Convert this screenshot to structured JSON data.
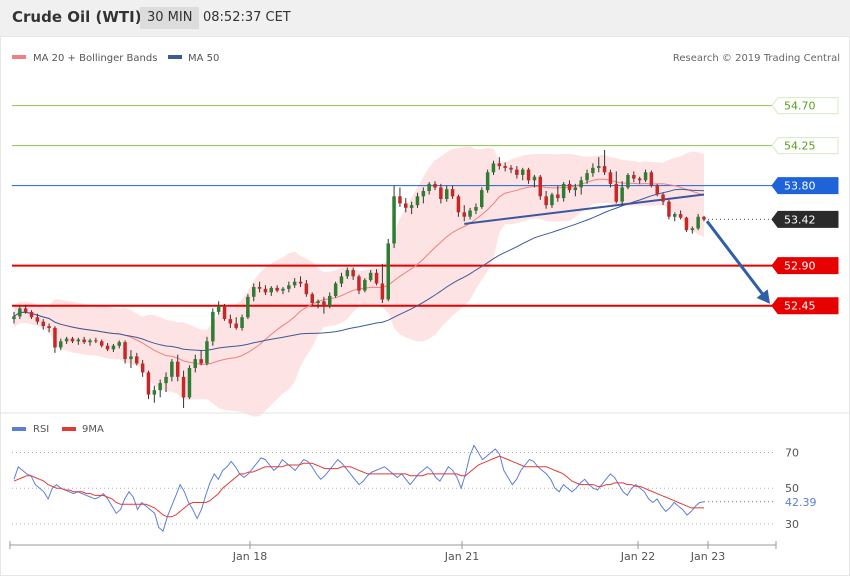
{
  "header": {
    "instrument": "Crude Oil (WTI)",
    "timeframe": "30 MIN",
    "time": "08:52:37 CET"
  },
  "legend": {
    "ma20_label": "MA 20 + Bollinger Bands",
    "ma50_label": "MA 50",
    "credit": "Research © 2019 Trading Central"
  },
  "rsi_legend": {
    "rsi_label": "RSI",
    "ma_label": "9MA"
  },
  "colors": {
    "bull_candle": "#2e7d32",
    "bear_candle": "#c62828",
    "bollinger_fill": "#fddede",
    "ma20": "#f08080",
    "ma50": "#3a5b9b",
    "rsi": "#5b7fd9",
    "rsi_ma": "#e53935",
    "support": "#e60000",
    "pivot": "#1e63d8",
    "resistance": "#8bc34a",
    "arrow": "#2f5fa6",
    "current_price": "#2b2b2b"
  },
  "chart_data": [
    {
      "type": "candlestick",
      "title": "Crude Oil (WTI)",
      "interval": "30 MIN",
      "x_ticks": [
        "Jan 18",
        "Jan 21",
        "Jan 22",
        "Jan 23"
      ],
      "ylim": [
        51.3,
        55.1
      ],
      "price_levels": [
        {
          "label": "54.70",
          "value": 54.7,
          "kind": "resistance"
        },
        {
          "label": "54.25",
          "value": 54.25,
          "kind": "resistance"
        },
        {
          "label": "53.80",
          "value": 53.8,
          "kind": "pivot"
        },
        {
          "label": "53.42",
          "value": 53.42,
          "kind": "current"
        },
        {
          "label": "52.90",
          "value": 52.9,
          "kind": "support"
        },
        {
          "label": "52.45",
          "value": 52.45,
          "kind": "support"
        }
      ],
      "series": [
        {
          "name": "MA 20 + Bollinger Bands"
        },
        {
          "name": "MA 50"
        }
      ],
      "candles": [
        [
          52.3,
          52.38,
          52.25,
          52.33
        ],
        [
          52.33,
          52.45,
          52.3,
          52.42
        ],
        [
          52.42,
          52.46,
          52.36,
          52.38
        ],
        [
          52.38,
          52.4,
          52.3,
          52.32
        ],
        [
          52.32,
          52.36,
          52.24,
          52.27
        ],
        [
          52.27,
          52.3,
          52.18,
          52.22
        ],
        [
          52.22,
          52.25,
          52.15,
          52.2
        ],
        [
          52.2,
          52.22,
          51.92,
          51.98
        ],
        [
          51.98,
          52.08,
          51.95,
          52.05
        ],
        [
          52.05,
          52.1,
          52.02,
          52.08
        ],
        [
          52.08,
          52.1,
          52.03,
          52.05
        ],
        [
          52.05,
          52.09,
          52.01,
          52.07
        ],
        [
          52.07,
          52.1,
          52.02,
          52.04
        ],
        [
          52.04,
          52.08,
          52.0,
          52.06
        ],
        [
          52.06,
          52.09,
          52.03,
          52.05
        ],
        [
          52.05,
          52.07,
          51.98,
          52.0
        ],
        [
          52.0,
          52.03,
          51.94,
          51.96
        ],
        [
          51.96,
          52.02,
          51.93,
          52.0
        ],
        [
          52.0,
          52.06,
          51.97,
          52.04
        ],
        [
          52.04,
          52.06,
          51.8,
          51.85
        ],
        [
          51.85,
          51.95,
          51.75,
          51.88
        ],
        [
          51.88,
          51.92,
          51.78,
          51.8
        ],
        [
          51.8,
          51.84,
          51.65,
          51.7
        ],
        [
          51.7,
          51.72,
          51.4,
          51.45
        ],
        [
          51.45,
          51.55,
          51.36,
          51.5
        ],
        [
          51.5,
          51.62,
          51.42,
          51.58
        ],
        [
          51.58,
          51.7,
          51.48,
          51.65
        ],
        [
          51.65,
          51.85,
          51.6,
          51.82
        ],
        [
          51.82,
          51.9,
          51.6,
          51.65
        ],
        [
          51.65,
          51.72,
          51.3,
          51.42
        ],
        [
          51.42,
          51.78,
          51.4,
          51.75
        ],
        [
          51.75,
          51.9,
          51.7,
          51.85
        ],
        [
          51.85,
          51.95,
          51.78,
          51.8
        ],
        [
          51.8,
          52.1,
          51.78,
          52.05
        ],
        [
          52.05,
          52.42,
          52.0,
          52.38
        ],
        [
          52.38,
          52.5,
          52.35,
          52.45
        ],
        [
          52.45,
          52.47,
          52.28,
          52.3
        ],
        [
          52.3,
          52.35,
          52.2,
          52.25
        ],
        [
          52.25,
          52.32,
          52.18,
          52.2
        ],
        [
          52.2,
          52.35,
          52.17,
          52.32
        ],
        [
          52.32,
          52.58,
          52.3,
          52.55
        ],
        [
          52.55,
          52.7,
          52.5,
          52.66
        ],
        [
          52.66,
          52.72,
          52.6,
          52.64
        ],
        [
          52.64,
          52.68,
          52.57,
          52.6
        ],
        [
          52.6,
          52.67,
          52.56,
          52.65
        ],
        [
          52.65,
          52.68,
          52.6,
          52.62
        ],
        [
          52.62,
          52.66,
          52.58,
          52.64
        ],
        [
          52.64,
          52.72,
          52.6,
          52.68
        ],
        [
          52.68,
          52.76,
          52.65,
          52.72
        ],
        [
          52.72,
          52.78,
          52.66,
          52.7
        ],
        [
          52.7,
          52.74,
          52.55,
          52.58
        ],
        [
          52.58,
          52.6,
          52.45,
          52.48
        ],
        [
          52.48,
          52.52,
          52.42,
          52.5
        ],
        [
          52.5,
          52.55,
          52.36,
          52.45
        ],
        [
          52.45,
          52.6,
          52.42,
          52.56
        ],
        [
          52.56,
          52.72,
          52.54,
          52.7
        ],
        [
          52.7,
          52.82,
          52.66,
          52.78
        ],
        [
          52.78,
          52.88,
          52.75,
          52.85
        ],
        [
          52.85,
          52.88,
          52.74,
          52.78
        ],
        [
          52.78,
          52.8,
          52.58,
          52.62
        ],
        [
          52.62,
          52.76,
          52.6,
          52.74
        ],
        [
          52.74,
          52.85,
          52.72,
          52.82
        ],
        [
          52.82,
          52.86,
          52.68,
          52.7
        ],
        [
          52.7,
          52.92,
          52.48,
          52.52
        ],
        [
          52.52,
          53.2,
          52.5,
          53.15
        ],
        [
          53.15,
          53.8,
          53.1,
          53.68
        ],
        [
          53.68,
          53.78,
          53.56,
          53.6
        ],
        [
          53.6,
          53.66,
          53.5,
          53.55
        ],
        [
          53.55,
          53.62,
          53.48,
          53.58
        ],
        [
          53.58,
          53.72,
          53.55,
          53.68
        ],
        [
          53.68,
          53.78,
          53.6,
          53.74
        ],
        [
          53.74,
          53.84,
          53.7,
          53.82
        ],
        [
          53.82,
          53.85,
          53.75,
          53.78
        ],
        [
          53.78,
          53.82,
          53.6,
          53.65
        ],
        [
          53.65,
          53.8,
          53.62,
          53.76
        ],
        [
          53.76,
          53.8,
          53.65,
          53.68
        ],
        [
          53.68,
          53.7,
          53.45,
          53.5
        ],
        [
          53.5,
          53.58,
          53.4,
          53.45
        ],
        [
          53.45,
          53.55,
          53.42,
          53.52
        ],
        [
          53.52,
          53.6,
          53.48,
          53.56
        ],
        [
          53.56,
          53.78,
          53.54,
          53.75
        ],
        [
          53.75,
          53.98,
          53.72,
          53.95
        ],
        [
          53.95,
          54.08,
          53.92,
          54.05
        ],
        [
          54.05,
          54.12,
          53.98,
          54.02
        ],
        [
          54.02,
          54.06,
          53.96,
          54.0
        ],
        [
          54.0,
          54.03,
          53.94,
          53.98
        ],
        [
          53.98,
          54.02,
          53.88,
          53.92
        ],
        [
          53.92,
          54.0,
          53.86,
          53.98
        ],
        [
          53.98,
          54.0,
          53.82,
          53.86
        ],
        [
          53.86,
          53.92,
          53.78,
          53.9
        ],
        [
          53.9,
          53.92,
          53.64,
          53.68
        ],
        [
          53.68,
          53.74,
          53.54,
          53.58
        ],
        [
          53.58,
          53.72,
          53.55,
          53.7
        ],
        [
          53.7,
          53.8,
          53.62,
          53.66
        ],
        [
          53.66,
          53.84,
          53.62,
          53.82
        ],
        [
          53.82,
          53.86,
          53.72,
          53.75
        ],
        [
          53.75,
          53.82,
          53.68,
          53.78
        ],
        [
          53.78,
          53.9,
          53.7,
          53.86
        ],
        [
          53.86,
          53.98,
          53.82,
          53.94
        ],
        [
          53.94,
          54.05,
          53.9,
          54.0
        ],
        [
          54.0,
          54.12,
          53.95,
          54.02
        ],
        [
          54.02,
          54.2,
          53.92,
          53.95
        ],
        [
          53.95,
          53.98,
          53.78,
          53.82
        ],
        [
          53.82,
          53.96,
          53.6,
          53.62
        ],
        [
          53.62,
          53.85,
          53.58,
          53.78
        ],
        [
          53.78,
          53.94,
          53.76,
          53.92
        ],
        [
          53.92,
          53.96,
          53.84,
          53.88
        ],
        [
          53.88,
          53.9,
          53.82,
          53.86
        ],
        [
          53.86,
          53.98,
          53.84,
          53.95
        ],
        [
          53.95,
          53.97,
          53.78,
          53.8
        ],
        [
          53.8,
          53.82,
          53.68,
          53.7
        ],
        [
          53.7,
          53.72,
          53.58,
          53.62
        ],
        [
          53.62,
          53.64,
          53.42,
          53.45
        ],
        [
          53.45,
          53.5,
          53.4,
          53.48
        ],
        [
          53.48,
          53.52,
          53.42,
          53.44
        ],
        [
          53.44,
          53.45,
          53.28,
          53.3
        ],
        [
          53.3,
          53.34,
          53.26,
          53.32
        ],
        [
          53.32,
          53.48,
          53.3,
          53.45
        ],
        [
          53.45,
          53.46,
          53.4,
          53.42
        ]
      ]
    },
    {
      "type": "line",
      "title": "RSI",
      "y_ticks": [
        "70",
        "50",
        "30"
      ],
      "ylim": [
        21,
        77
      ],
      "current_value_label": "42.39",
      "series": [
        {
          "name": "RSI",
          "values": [
            55,
            62,
            60,
            58,
            57,
            52,
            50,
            48,
            44,
            50,
            52,
            50,
            49,
            48,
            47,
            48,
            47,
            46,
            45,
            44,
            45,
            47,
            44,
            40,
            36,
            38,
            44,
            48,
            45,
            38,
            42,
            40,
            38,
            36,
            28,
            26,
            34,
            40,
            46,
            52,
            48,
            42,
            38,
            33,
            38,
            46,
            53,
            58,
            55,
            60,
            62,
            65,
            62,
            58,
            56,
            58,
            61,
            64,
            67,
            66,
            63,
            60,
            62,
            66,
            64,
            62,
            60,
            63,
            66,
            65,
            62,
            58,
            55,
            57,
            60,
            63,
            66,
            64,
            61,
            58,
            55,
            52,
            54,
            57,
            59,
            60,
            61,
            62,
            60,
            58,
            56,
            58,
            55,
            52,
            55,
            58,
            60,
            62,
            60,
            56,
            54,
            58,
            62,
            60,
            56,
            50,
            58,
            68,
            74,
            70,
            66,
            68,
            70,
            72,
            69,
            60,
            56,
            52,
            55,
            60,
            63,
            66,
            65,
            62,
            60,
            58,
            55,
            50,
            48,
            52,
            50,
            48,
            50,
            53,
            55,
            52,
            50,
            49,
            52,
            55,
            58,
            56,
            52,
            48,
            46,
            50,
            52,
            50,
            48,
            44,
            42,
            44,
            40,
            37,
            39,
            42,
            40,
            38,
            35,
            37,
            40,
            42,
            42.39
          ]
        },
        {
          "name": "9MA",
          "values": [
            54,
            55,
            56,
            57,
            57,
            56,
            55,
            54,
            52,
            51,
            50,
            50,
            49,
            49,
            48,
            48,
            48,
            47,
            47,
            46,
            46,
            46,
            45,
            44,
            42,
            41,
            41,
            41,
            41,
            41,
            41,
            41,
            40,
            39,
            37,
            35,
            34,
            34,
            35,
            37,
            39,
            41,
            42,
            42,
            42,
            42,
            43,
            45,
            47,
            50,
            52,
            54,
            56,
            58,
            58,
            59,
            59,
            60,
            61,
            62,
            62,
            62,
            62,
            62,
            63,
            63,
            63,
            63,
            64,
            64,
            64,
            63,
            62,
            61,
            61,
            61,
            61,
            62,
            62,
            62,
            61,
            60,
            59,
            58,
            58,
            58,
            58,
            58,
            58,
            58,
            58,
            58,
            58,
            57,
            57,
            57,
            57,
            58,
            58,
            58,
            58,
            58,
            58,
            58,
            58,
            57,
            57,
            59,
            61,
            63,
            64,
            65,
            66,
            67,
            68,
            67,
            66,
            65,
            64,
            63,
            62,
            62,
            62,
            62,
            62,
            62,
            61,
            60,
            59,
            58,
            56,
            54,
            53,
            52,
            52,
            52,
            52,
            51,
            51,
            52,
            52,
            53,
            53,
            53,
            52,
            52,
            51,
            51,
            50,
            49,
            48,
            47,
            46,
            45,
            44,
            43,
            42,
            41,
            40,
            39,
            39,
            39,
            39
          ]
        }
      ]
    }
  ]
}
